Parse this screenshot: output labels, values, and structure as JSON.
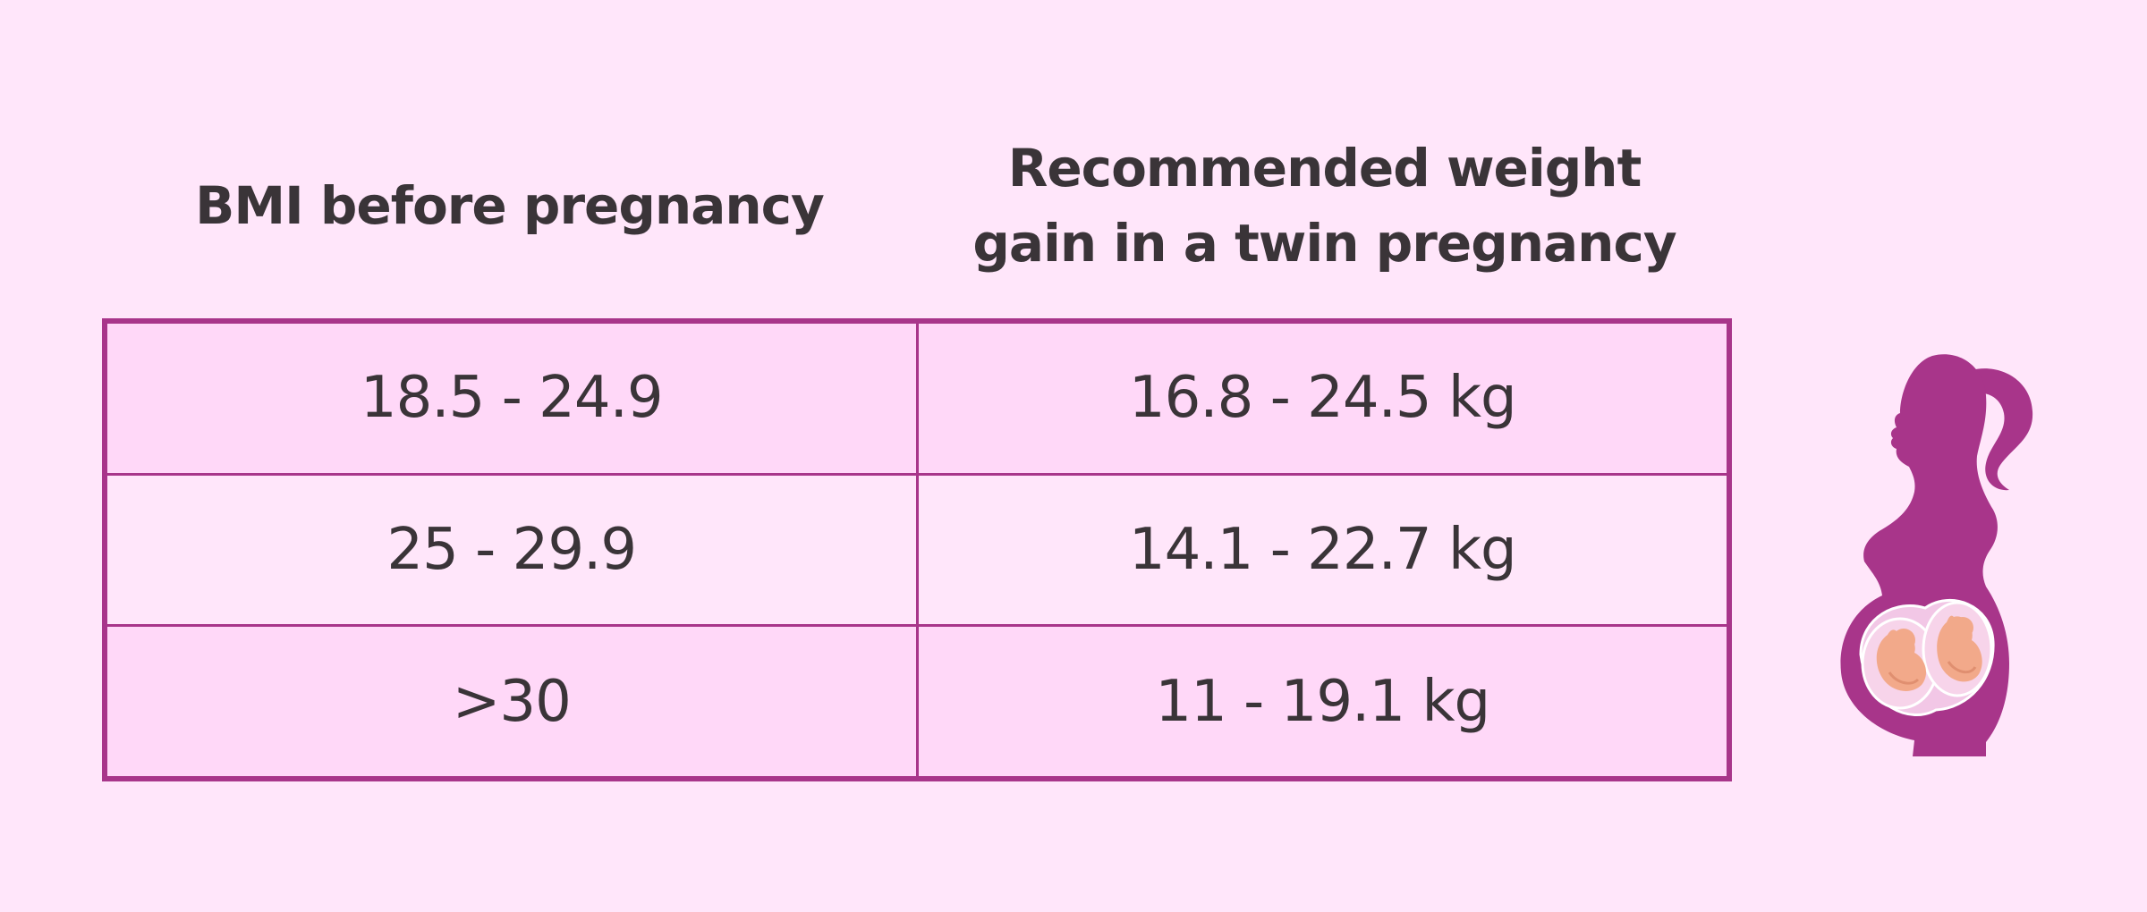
{
  "table": {
    "headers": [
      "BMI before pregnancy",
      "Recommended weight gain in a twin pregnancy"
    ],
    "rows": [
      {
        "bmi": "18.5 - 24.9",
        "gain": "16.8 - 24.5 kg"
      },
      {
        "bmi": "25 - 29.9",
        "gain": "14.1 - 22.7 kg"
      },
      {
        "bmi": ">30",
        "gain": "11 - 19.1 kg"
      }
    ]
  },
  "colors": {
    "background": "#ffe6fa",
    "row_shade": "#ffd8f8",
    "border": "#a8358a",
    "silhouette": "#a8358a",
    "text": "#3a3438"
  },
  "illustration": {
    "icon": "pregnant-woman-twins-icon"
  }
}
